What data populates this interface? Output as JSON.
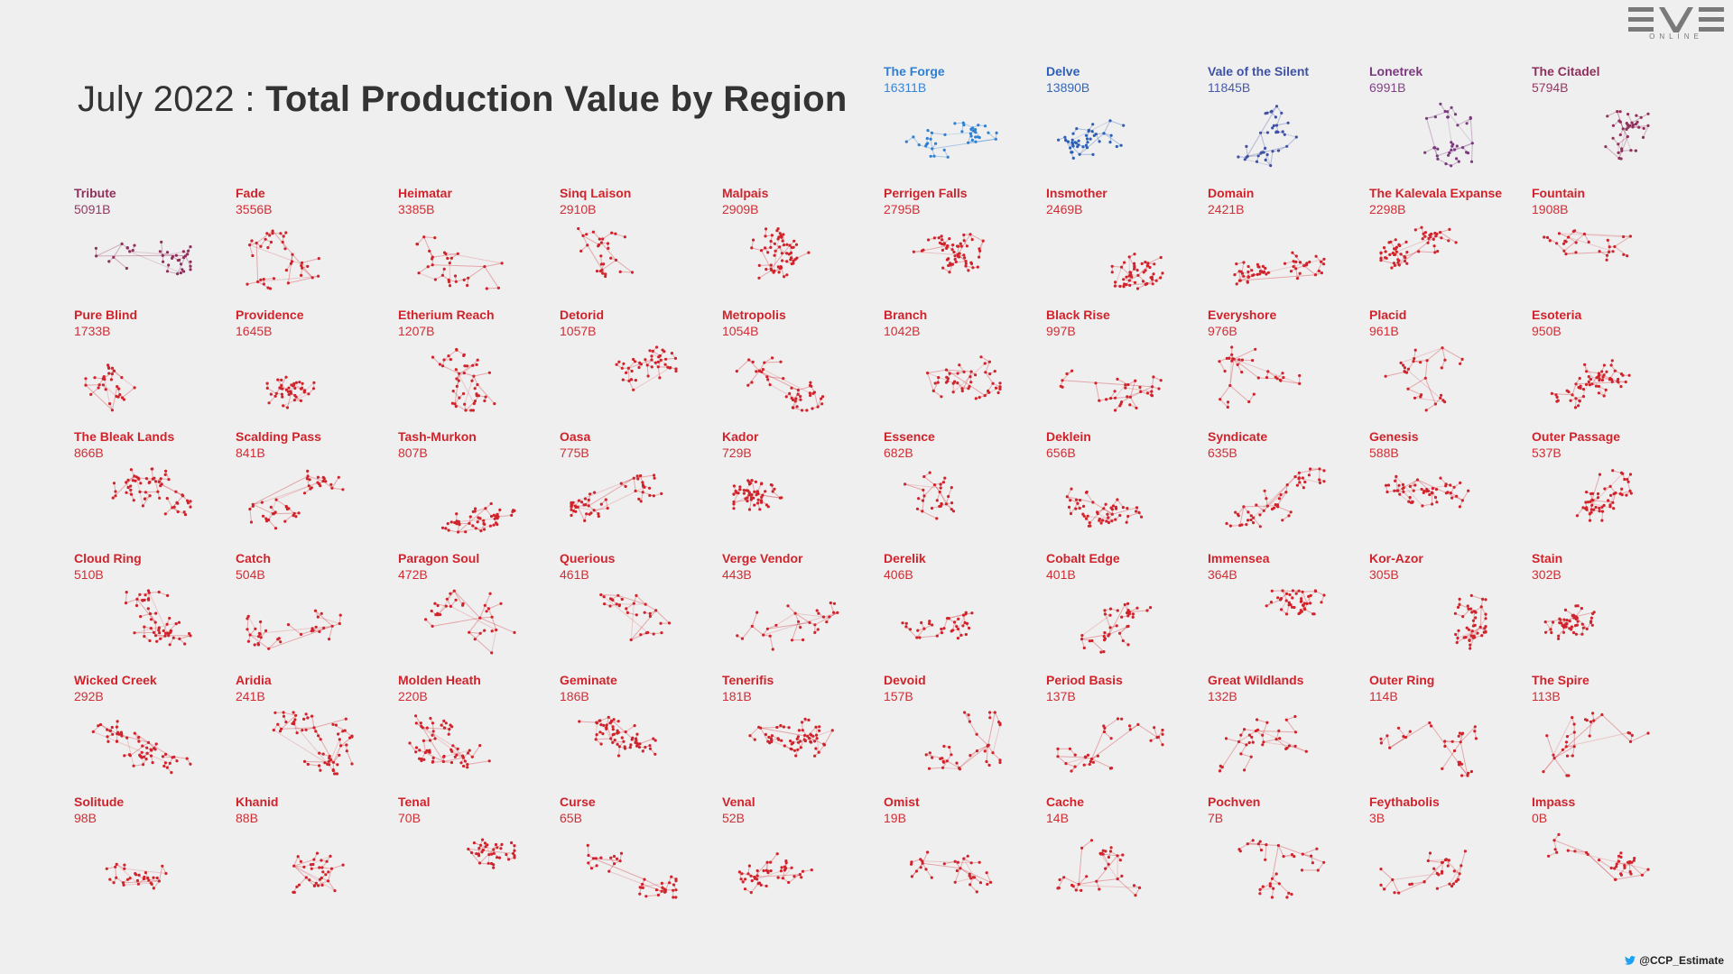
{
  "title": {
    "prefix": "July 2022 : ",
    "main": "Total Production Value by Region"
  },
  "logo": {
    "mark": "EVE",
    "sub": "ONLINE"
  },
  "credit": "@CCP_Estimate",
  "colors": {
    "blue1": "#2f7fd3",
    "blue2": "#2c5fb6",
    "indigo": "#3f51a5",
    "plum": "#7a3a7e",
    "wine": "#8f2f5c",
    "red": "#d0232b",
    "background": "#efefef"
  },
  "chart_data": {
    "type": "scatter",
    "title": "July 2022 : Total Production Value by Region",
    "unit": "B",
    "regions": [
      {
        "name": "The Forge",
        "value": "16311B"
      },
      {
        "name": "Delve",
        "value": "13890B"
      },
      {
        "name": "Vale of the Silent",
        "value": "11845B"
      },
      {
        "name": "Lonetrek",
        "value": "6991B"
      },
      {
        "name": "The Citadel",
        "value": "5794B"
      },
      {
        "name": "Tribute",
        "value": "5091B"
      },
      {
        "name": "Fade",
        "value": "3556B"
      },
      {
        "name": "Heimatar",
        "value": "3385B"
      },
      {
        "name": "Sinq Laison",
        "value": "2910B"
      },
      {
        "name": "Malpais",
        "value": "2909B"
      },
      {
        "name": "Perrigen Falls",
        "value": "2795B"
      },
      {
        "name": "Insmother",
        "value": "2469B"
      },
      {
        "name": "Domain",
        "value": "2421B"
      },
      {
        "name": "The Kalevala Expanse",
        "value": "2298B"
      },
      {
        "name": "Fountain",
        "value": "1908B"
      },
      {
        "name": "Pure Blind",
        "value": "1733B"
      },
      {
        "name": "Providence",
        "value": "1645B"
      },
      {
        "name": "Etherium Reach",
        "value": "1207B"
      },
      {
        "name": "Detorid",
        "value": "1057B"
      },
      {
        "name": "Metropolis",
        "value": "1054B"
      },
      {
        "name": "Branch",
        "value": "1042B"
      },
      {
        "name": "Black Rise",
        "value": "997B"
      },
      {
        "name": "Everyshore",
        "value": "976B"
      },
      {
        "name": "Placid",
        "value": "961B"
      },
      {
        "name": "Esoteria",
        "value": "950B"
      },
      {
        "name": "The Bleak Lands",
        "value": "866B"
      },
      {
        "name": "Scalding Pass",
        "value": "841B"
      },
      {
        "name": "Tash-Murkon",
        "value": "807B"
      },
      {
        "name": "Oasa",
        "value": "775B"
      },
      {
        "name": "Kador",
        "value": "729B"
      },
      {
        "name": "Essence",
        "value": "682B"
      },
      {
        "name": "Deklein",
        "value": "656B"
      },
      {
        "name": "Syndicate",
        "value": "635B"
      },
      {
        "name": "Genesis",
        "value": "588B"
      },
      {
        "name": "Outer Passage",
        "value": "537B"
      },
      {
        "name": "Cloud Ring",
        "value": "510B"
      },
      {
        "name": "Catch",
        "value": "504B"
      },
      {
        "name": "Paragon Soul",
        "value": "472B"
      },
      {
        "name": "Querious",
        "value": "461B"
      },
      {
        "name": "Verge Vendor",
        "value": "443B"
      },
      {
        "name": "Derelik",
        "value": "406B"
      },
      {
        "name": "Cobalt Edge",
        "value": "401B"
      },
      {
        "name": "Immensea",
        "value": "364B"
      },
      {
        "name": "Kor-Azor",
        "value": "305B"
      },
      {
        "name": "Stain",
        "value": "302B"
      },
      {
        "name": "Wicked Creek",
        "value": "292B"
      },
      {
        "name": "Aridia",
        "value": "241B"
      },
      {
        "name": "Molden Heath",
        "value": "220B"
      },
      {
        "name": "Geminate",
        "value": "186B"
      },
      {
        "name": "Tenerifis",
        "value": "181B"
      },
      {
        "name": "Devoid",
        "value": "157B"
      },
      {
        "name": "Period Basis",
        "value": "137B"
      },
      {
        "name": "Great Wildlands",
        "value": "132B"
      },
      {
        "name": "Outer Ring",
        "value": "114B"
      },
      {
        "name": "The Spire",
        "value": "113B"
      },
      {
        "name": "Solitude",
        "value": "98B"
      },
      {
        "name": "Khanid",
        "value": "88B"
      },
      {
        "name": "Tenal",
        "value": "70B"
      },
      {
        "name": "Curse",
        "value": "65B"
      },
      {
        "name": "Venal",
        "value": "52B"
      },
      {
        "name": "Omist",
        "value": "19B"
      },
      {
        "name": "Cache",
        "value": "14B"
      },
      {
        "name": "Pochven",
        "value": "7B"
      },
      {
        "name": "Feythabolis",
        "value": "3B"
      },
      {
        "name": "Impass",
        "value": "0B"
      }
    ]
  }
}
